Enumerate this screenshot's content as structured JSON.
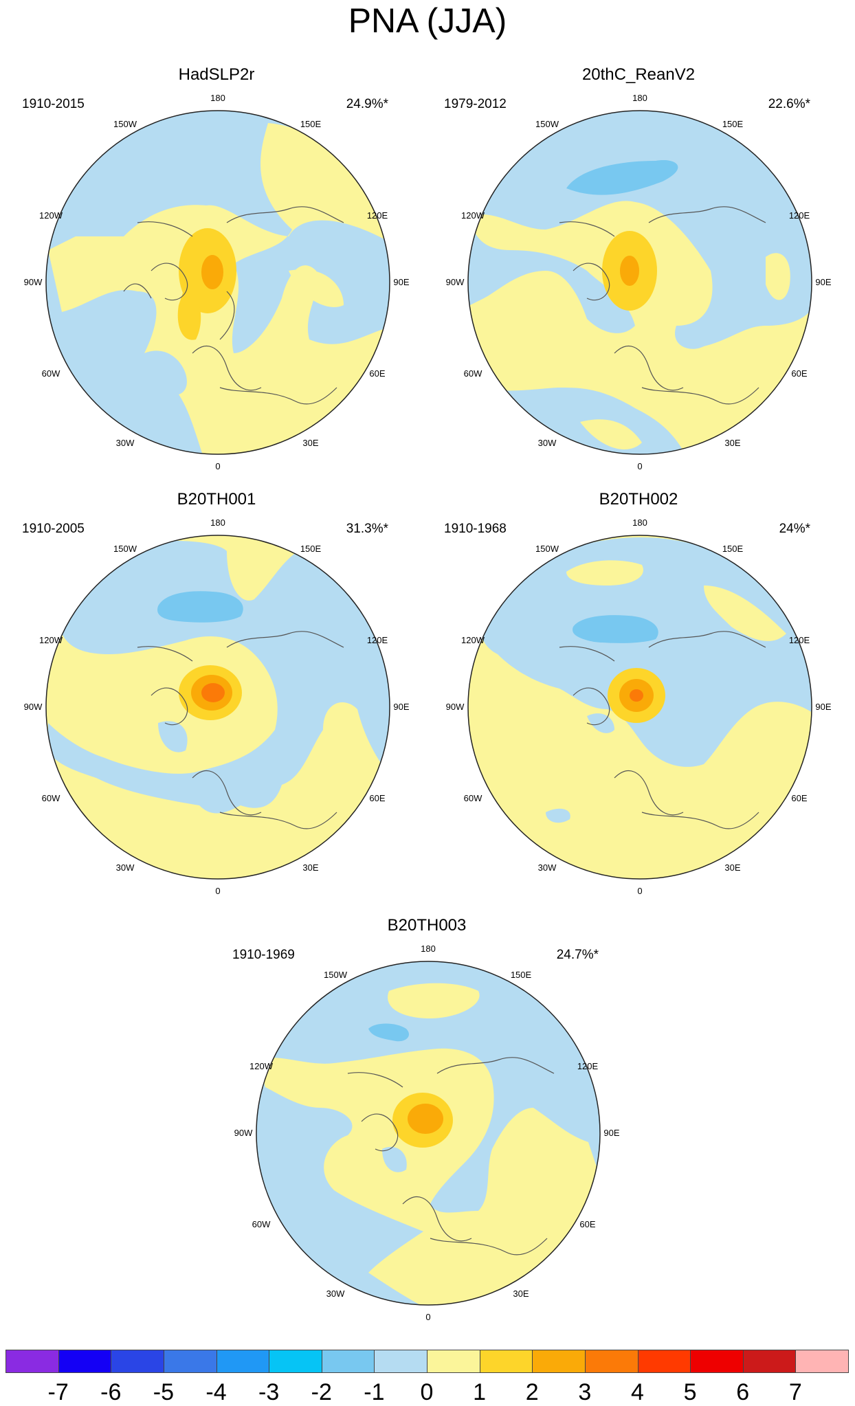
{
  "title": "PNA (JJA)",
  "panels": [
    {
      "name": "HadSLP2r",
      "period": "1910-2015",
      "variance": "24.9%*"
    },
    {
      "name": "20thC_ReanV2",
      "period": "1979-2012",
      "variance": "22.6%*"
    },
    {
      "name": "B20TH001",
      "period": "1910-2005",
      "variance": "31.3%*"
    },
    {
      "name": "B20TH002",
      "period": "1910-1968",
      "variance": "24%*"
    },
    {
      "name": "B20TH003",
      "period": "1910-1969",
      "variance": "24.7%*"
    }
  ],
  "longitude_labels": [
    "180",
    "150E",
    "120E",
    "90E",
    "60E",
    "30E",
    "0",
    "30W",
    "60W",
    "90W",
    "120W",
    "150W"
  ],
  "colorbar": {
    "labels": [
      "-7",
      "-6",
      "-5",
      "-4",
      "-3",
      "-2",
      "-1",
      "0",
      "1",
      "2",
      "3",
      "4",
      "5",
      "6",
      "7"
    ],
    "colors": [
      "#8a2be2",
      "#1400f5",
      "#2a45e6",
      "#3a78e8",
      "#2098f5",
      "#06c4f5",
      "#78c8f0",
      "#b5dcf2",
      "#fbf59a",
      "#fdd52a",
      "#faaa08",
      "#fb7a08",
      "#ff3a00",
      "#ee0000",
      "#cc1a1a",
      "#ffb4b4"
    ]
  },
  "colors": {
    "negative_weak": "#b5dcf2",
    "positive_weak": "#fbf59a",
    "negative_mid": "#78c8f0",
    "positive_mid": "#fdd52a",
    "positive_strong": "#faaa08",
    "positive_stronger": "#fb7a08",
    "coastline": "#555555"
  }
}
